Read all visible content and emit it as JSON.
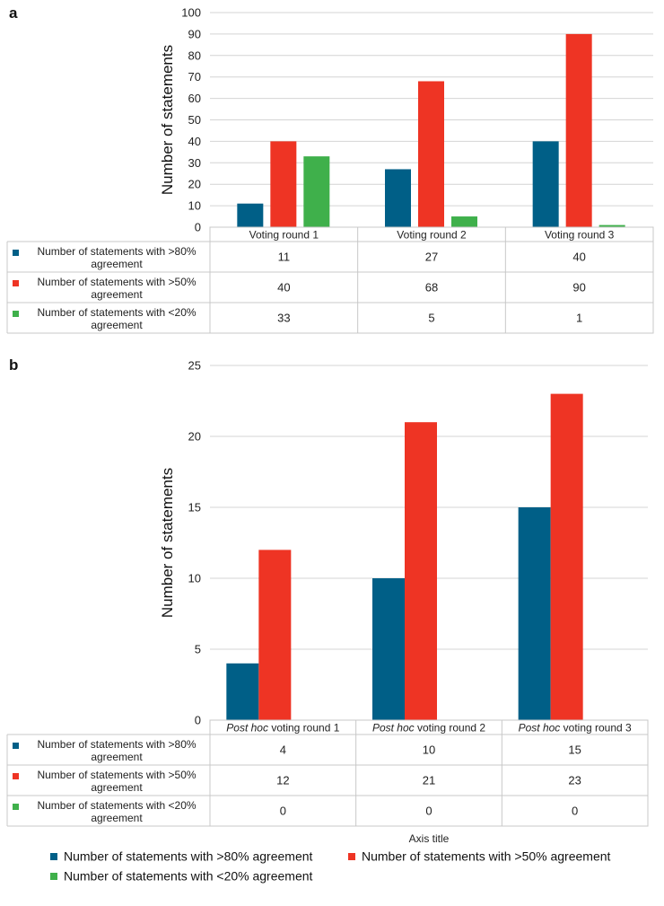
{
  "colors": {
    "s80": "#005f87",
    "s50": "#ee3424",
    "s20": "#3fb04b"
  },
  "legend": {
    "items": [
      "Number of statements with >80% agreement",
      "Number of statements with >50% agreement",
      "Number of statements with <20% agreement"
    ]
  },
  "chart_data": [
    {
      "panel": "a",
      "type": "bar",
      "ylabel": "Number of statements",
      "ylim": [
        0,
        100
      ],
      "yticks": [
        0,
        10,
        20,
        30,
        40,
        50,
        60,
        70,
        80,
        90,
        100
      ],
      "categories": [
        "Voting round 1",
        "Voting round 2",
        "Voting round 3"
      ],
      "series": [
        {
          "name": "Number of statements with >80% agreement",
          "values": [
            11,
            27,
            40
          ]
        },
        {
          "name": "Number of statements with >50% agreement",
          "values": [
            40,
            68,
            90
          ]
        },
        {
          "name": "Number of statements with <20% agreement",
          "values": [
            33,
            5,
            1
          ]
        }
      ]
    },
    {
      "panel": "b",
      "type": "bar",
      "ylabel": "Number of statements",
      "xlabel": "Axis title",
      "ylim": [
        0,
        25
      ],
      "yticks": [
        0,
        5,
        10,
        15,
        20,
        25
      ],
      "categories": [
        {
          "prefix": "Post hoc",
          "suffix": " voting round 1"
        },
        {
          "prefix": "Post hoc",
          "suffix": " voting round 2"
        },
        {
          "prefix": "Post hoc",
          "suffix": " voting round 3"
        }
      ],
      "series": [
        {
          "name": "Number of statements with >80% agreement",
          "values": [
            4,
            10,
            15
          ]
        },
        {
          "name": "Number of statements with >50% agreement",
          "values": [
            12,
            21,
            23
          ]
        },
        {
          "name": "Number of statements with <20% agreement",
          "values": [
            0,
            0,
            0
          ]
        }
      ]
    }
  ]
}
